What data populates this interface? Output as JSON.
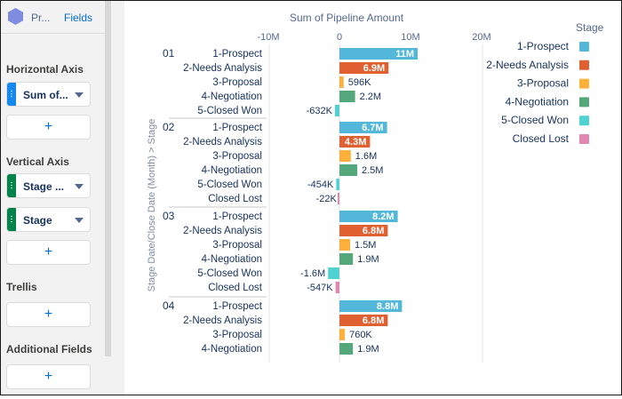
{
  "panel": {
    "title": "Pr...",
    "tab": "Fields",
    "sections": {
      "horizontal_axis": "Horizontal Axis",
      "vertical_axis": "Vertical Axis",
      "trellis": "Trellis",
      "additional_fields": "Additional Fields"
    },
    "pills": {
      "h_measure": "Sum of...",
      "v_stage_date": "Stage ...",
      "v_stage": "Stage"
    },
    "add_label": "+",
    "colors": {
      "blue_grip": "#1589ee",
      "green_grip": "#04844b",
      "hex_icon": "#7f8de1"
    }
  },
  "chart_data": {
    "type": "bar",
    "orientation": "horizontal",
    "xlabel": "Sum of Pipeline Amount",
    "ylabel": "Stage Date/Close Date (Month) > Stage",
    "xlim": [
      -10000000,
      20000000
    ],
    "xticks": [
      {
        "value": -10000000,
        "label": "-10M"
      },
      {
        "value": 0,
        "label": "0"
      },
      {
        "value": 10000000,
        "label": "10M"
      },
      {
        "value": 20000000,
        "label": "20M"
      }
    ],
    "legend_title": "Stage",
    "legend_position": "right",
    "stage_colors": {
      "1-Prospect": "#52b7d8",
      "2-Needs Analysis": "#e16032",
      "3-Proposal": "#ffb03b",
      "4-Negotiation": "#54a77b",
      "5-Closed Won": "#4fd2d2",
      "Closed Lost": "#e287b2"
    },
    "legend": [
      "1-Prospect",
      "2-Needs Analysis",
      "3-Proposal",
      "4-Negotiation",
      "5-Closed Won",
      "Closed Lost"
    ],
    "groups": [
      {
        "month": "01",
        "rows": [
          {
            "stage": "1-Prospect",
            "value": 11000000,
            "label": "11M"
          },
          {
            "stage": "2-Needs Analysis",
            "value": 6900000,
            "label": "6.9M"
          },
          {
            "stage": "3-Proposal",
            "value": 596000,
            "label": "596K"
          },
          {
            "stage": "4-Negotiation",
            "value": 2200000,
            "label": "2.2M"
          },
          {
            "stage": "5-Closed Won",
            "value": -632000,
            "label": "-632K"
          }
        ]
      },
      {
        "month": "02",
        "rows": [
          {
            "stage": "1-Prospect",
            "value": 6700000,
            "label": "6.7M"
          },
          {
            "stage": "2-Needs Analysis",
            "value": 4300000,
            "label": "4.3M"
          },
          {
            "stage": "3-Proposal",
            "value": 1600000,
            "label": "1.6M"
          },
          {
            "stage": "4-Negotiation",
            "value": 2500000,
            "label": "2.5M"
          },
          {
            "stage": "5-Closed Won",
            "value": -454000,
            "label": "-454K"
          },
          {
            "stage": "Closed Lost",
            "value": -22000,
            "label": "-22K"
          }
        ]
      },
      {
        "month": "03",
        "rows": [
          {
            "stage": "1-Prospect",
            "value": 8200000,
            "label": "8.2M"
          },
          {
            "stage": "2-Needs Analysis",
            "value": 6800000,
            "label": "6.8M"
          },
          {
            "stage": "3-Proposal",
            "value": 1500000,
            "label": "1.5M"
          },
          {
            "stage": "4-Negotiation",
            "value": 1900000,
            "label": "1.9M"
          },
          {
            "stage": "5-Closed Won",
            "value": -1600000,
            "label": "-1.6M"
          },
          {
            "stage": "Closed Lost",
            "value": -547000,
            "label": "-547K"
          }
        ]
      },
      {
        "month": "04",
        "rows": [
          {
            "stage": "1-Prospect",
            "value": 8800000,
            "label": "8.8M"
          },
          {
            "stage": "2-Needs Analysis",
            "value": 6800000,
            "label": "6.8M"
          },
          {
            "stage": "3-Proposal",
            "value": 760000,
            "label": "760K"
          },
          {
            "stage": "4-Negotiation",
            "value": 1900000,
            "label": "1.9M"
          }
        ]
      }
    ]
  }
}
